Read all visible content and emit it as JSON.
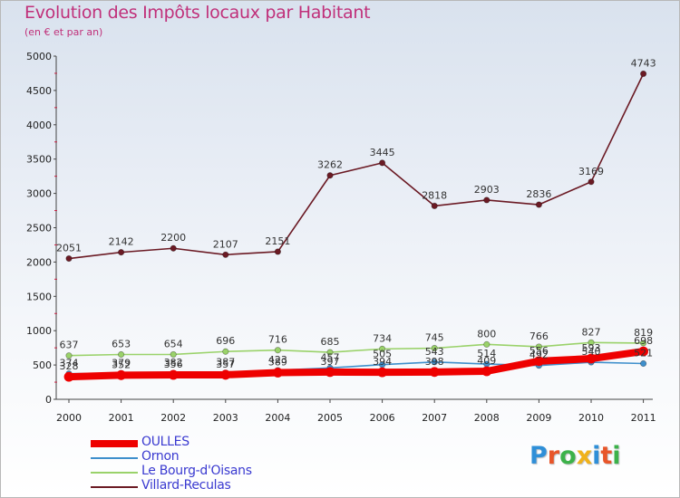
{
  "title": "Evolution des Impôts locaux par Habitant",
  "subtitle": "(en € et par an)",
  "logo": {
    "text": "Proxiti",
    "letters": [
      {
        "ch": "P",
        "color": "#2f8fd8"
      },
      {
        "ch": "r",
        "color": "#e8562a"
      },
      {
        "ch": "o",
        "color": "#3cb24a"
      },
      {
        "ch": "x",
        "color": "#f0b21b"
      },
      {
        "ch": "i",
        "color": "#2f8fd8"
      },
      {
        "ch": "t",
        "color": "#e8562a"
      },
      {
        "ch": "i",
        "color": "#3cb24a"
      }
    ]
  },
  "chart_data": {
    "type": "line",
    "title": "Evolution des Impôts locaux par Habitant",
    "subtitle": "(en € et par an)",
    "xlabel": "",
    "ylabel": "",
    "ylim": [
      0,
      5000
    ],
    "yticks": [
      0,
      500,
      1000,
      1500,
      2000,
      2500,
      3000,
      3500,
      4000,
      4500,
      5000
    ],
    "categories": [
      "2000",
      "2001",
      "2002",
      "2003",
      "2004",
      "2005",
      "2006",
      "2007",
      "2008",
      "2009",
      "2010",
      "2011"
    ],
    "legend_position": "bottom-left",
    "series": [
      {
        "name": "Villard-Reculas",
        "color": "#6b1a24",
        "values": [
          2051,
          2142,
          2200,
          2107,
          2151,
          3262,
          3445,
          2818,
          2903,
          2836,
          3169,
          4743
        ],
        "labels": [
          "2051",
          "2142",
          "2200",
          "2107",
          "2151",
          "3262",
          "3445",
          "2818",
          "2903",
          "2836",
          "3169",
          "4743"
        ]
      },
      {
        "name": "Le Bourg-d'Oisans",
        "color": "#9ad26a",
        "values": [
          637,
          653,
          654,
          696,
          716,
          685,
          734,
          745,
          800,
          766,
          827,
          819
        ],
        "labels": [
          "637",
          "653",
          "654",
          "696",
          "716",
          "685",
          "734",
          "745",
          "800",
          "766",
          "827",
          "819"
        ]
      },
      {
        "name": "Ornon",
        "color": "#3e8fcc",
        "values": [
          374,
          379,
          382,
          387,
          423,
          457,
          505,
          543,
          514,
          492,
          540,
          521
        ],
        "labels": [
          "374",
          "379",
          "382",
          "387",
          "423",
          "457",
          "505",
          "543",
          "514",
          "492",
          "540",
          "521"
        ]
      },
      {
        "name": "OULLES",
        "color": "#ee0000",
        "values": [
          328,
          352,
          356,
          357,
          389,
          397,
          394,
          398,
          409,
          556,
          593,
          698
        ],
        "labels": [
          "328",
          "352",
          "356",
          "357",
          "389",
          "397",
          "394",
          "398",
          "409",
          "556",
          "593",
          "698"
        ]
      }
    ]
  },
  "legend": [
    {
      "name": "OULLES",
      "color": "#ee0000",
      "thickness": 8
    },
    {
      "name": "Ornon",
      "color": "#3e8fcc",
      "thickness": 2
    },
    {
      "name": "Le Bourg-d'Oisans",
      "color": "#9ad26a",
      "thickness": 2
    },
    {
      "name": "Villard-Reculas",
      "color": "#6b1a24",
      "thickness": 2
    }
  ]
}
